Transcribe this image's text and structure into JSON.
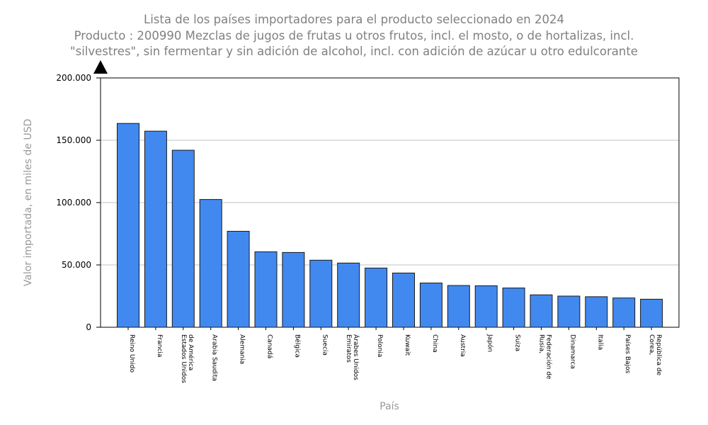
{
  "chart_data": {
    "type": "bar",
    "title": [
      "Lista de los países importadores para el producto seleccionado en 2024",
      "Producto : 200990 Mezclas de jugos de frutas u otros frutos, incl. el mosto, o de hortalizas, incl.",
      "\"silvestres\", sin fermentar y sin adición de alcohol, incl. con adición de azúcar u otro edulcorante"
    ],
    "xlabel": "País",
    "ylabel": "Valor importada, en miles de USD",
    "ylim": [
      0,
      200000
    ],
    "yticks": [
      {
        "value": 0,
        "label": "0"
      },
      {
        "value": 50000,
        "label": "50.000"
      },
      {
        "value": 100000,
        "label": "100.000"
      },
      {
        "value": 150000,
        "label": "150.000"
      },
      {
        "value": 200000,
        "label": "200.000"
      }
    ],
    "grid": true,
    "bar_color": "#4189ef",
    "categories": [
      [
        "Reino Unido"
      ],
      [
        "Francia"
      ],
      [
        "Estados Unidos",
        "de América"
      ],
      [
        "Arabia Saudita"
      ],
      [
        "Alemania"
      ],
      [
        "Canadá"
      ],
      [
        "Bélgica"
      ],
      [
        "Suecia"
      ],
      [
        "Emiratos",
        "Árabes Unidos"
      ],
      [
        "Polonia"
      ],
      [
        "Kuwait"
      ],
      [
        "China"
      ],
      [
        "Austria"
      ],
      [
        "Japón"
      ],
      [
        "Suiza"
      ],
      [
        "Rusia,",
        "Federación de"
      ],
      [
        "Dinamarca"
      ],
      [
        "Italia"
      ],
      [
        "Países Bajos"
      ],
      [
        "Corea,",
        "República de"
      ]
    ],
    "values": [
      163500,
      157300,
      142000,
      102500,
      77000,
      60500,
      60000,
      53800,
      51500,
      47500,
      43500,
      35500,
      33500,
      33300,
      31500,
      26000,
      25000,
      24500,
      23500,
      22500
    ]
  }
}
